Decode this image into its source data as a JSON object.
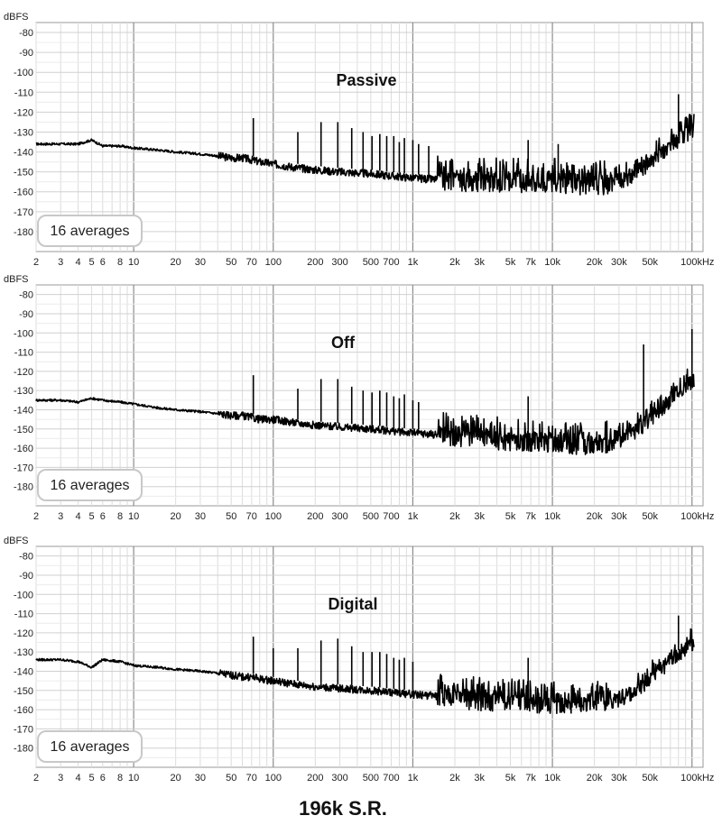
{
  "figure_caption": "196k S.R.",
  "averages_label": "16 averages",
  "chart_data": [
    {
      "type": "line",
      "title": "Passive",
      "ylabel": "dBFS",
      "xunit": "kHz",
      "xscale": "log",
      "xlim": [
        2,
        120000
      ],
      "ylim": [
        -190,
        -75
      ],
      "grid": true,
      "xticks": [
        2,
        3,
        4,
        5,
        6,
        8,
        10,
        20,
        30,
        50,
        70,
        100,
        200,
        300,
        500,
        700,
        1000,
        2000,
        3000,
        5000,
        7000,
        10000,
        20000,
        30000,
        50000,
        100000
      ],
      "xtick_labels": [
        "2",
        "3",
        "4",
        "5",
        "6",
        "8",
        "10",
        "20",
        "30",
        "50",
        "70",
        "100",
        "200",
        "300",
        "500",
        "700",
        "1k",
        "2k",
        "3k",
        "5k",
        "7k",
        "10k",
        "20k",
        "30k",
        "50k",
        "100kHz"
      ],
      "yticks": [
        -80,
        -90,
        -100,
        -110,
        -120,
        -130,
        -140,
        -150,
        -160,
        -170,
        -180
      ],
      "series": [
        {
          "x": [
            2,
            3,
            4,
            5,
            6,
            8,
            10,
            15,
            20,
            30,
            40,
            50,
            60,
            70,
            80,
            100,
            150,
            200,
            300,
            500,
            700,
            1000,
            1500,
            2000,
            3000,
            5000,
            7000,
            10000,
            15000,
            20000,
            25000,
            30000,
            40000,
            50000,
            60000,
            80000,
            100000
          ],
          "y": [
            -136,
            -136,
            -136,
            -134,
            -137,
            -137,
            -138,
            -139,
            -140,
            -141,
            -142,
            -143,
            -143,
            -144,
            -145,
            -146,
            -148,
            -149,
            -150,
            -151,
            -152,
            -153,
            -154,
            -154,
            -155,
            -155,
            -155,
            -155,
            -156,
            -156,
            -156,
            -155,
            -151,
            -146,
            -141,
            -134,
            -129
          ]
        }
      ],
      "spikes": [
        {
          "x": 72,
          "y": -123
        },
        {
          "x": 150,
          "y": -130
        },
        {
          "x": 220,
          "y": -125
        },
        {
          "x": 290,
          "y": -125
        },
        {
          "x": 365,
          "y": -128
        },
        {
          "x": 440,
          "y": -130
        },
        {
          "x": 510,
          "y": -132
        },
        {
          "x": 580,
          "y": -131
        },
        {
          "x": 650,
          "y": -132
        },
        {
          "x": 730,
          "y": -132
        },
        {
          "x": 800,
          "y": -135
        },
        {
          "x": 870,
          "y": -133
        },
        {
          "x": 1000,
          "y": -134
        },
        {
          "x": 1100,
          "y": -136
        },
        {
          "x": 1300,
          "y": -137
        },
        {
          "x": 6700,
          "y": -134
        },
        {
          "x": 11000,
          "y": -136
        },
        {
          "x": 80000,
          "y": -111
        }
      ]
    },
    {
      "type": "line",
      "title": "Off",
      "ylabel": "dBFS",
      "xunit": "kHz",
      "xscale": "log",
      "xlim": [
        2,
        120000
      ],
      "ylim": [
        -190,
        -75
      ],
      "grid": true,
      "xticks": [
        2,
        3,
        4,
        5,
        6,
        8,
        10,
        20,
        30,
        50,
        70,
        100,
        200,
        300,
        500,
        700,
        1000,
        2000,
        3000,
        5000,
        7000,
        10000,
        20000,
        30000,
        50000,
        100000
      ],
      "xtick_labels": [
        "2",
        "3",
        "4",
        "5",
        "6",
        "8",
        "10",
        "20",
        "30",
        "50",
        "70",
        "100",
        "200",
        "300",
        "500",
        "700",
        "1k",
        "2k",
        "3k",
        "5k",
        "7k",
        "10k",
        "20k",
        "30k",
        "50k",
        "100kHz"
      ],
      "yticks": [
        -80,
        -90,
        -100,
        -110,
        -120,
        -130,
        -140,
        -150,
        -160,
        -170,
        -180
      ],
      "series": [
        {
          "x": [
            2,
            3,
            4,
            5,
            6,
            8,
            10,
            15,
            20,
            30,
            40,
            50,
            60,
            70,
            80,
            100,
            150,
            200,
            300,
            500,
            700,
            1000,
            1500,
            2000,
            3000,
            5000,
            7000,
            10000,
            15000,
            20000,
            25000,
            30000,
            40000,
            50000,
            60000,
            80000,
            100000
          ],
          "y": [
            -135,
            -135,
            -136,
            -134,
            -135,
            -136,
            -137,
            -139,
            -140,
            -141,
            -142,
            -143,
            -143,
            -144,
            -145,
            -145,
            -147,
            -148,
            -149,
            -150,
            -151,
            -152,
            -153,
            -154,
            -155,
            -156,
            -157,
            -157,
            -158,
            -158,
            -158,
            -156,
            -151,
            -145,
            -140,
            -131,
            -125
          ]
        }
      ],
      "spikes": [
        {
          "x": 72,
          "y": -122
        },
        {
          "x": 150,
          "y": -129
        },
        {
          "x": 220,
          "y": -124
        },
        {
          "x": 290,
          "y": -124
        },
        {
          "x": 365,
          "y": -128
        },
        {
          "x": 440,
          "y": -130
        },
        {
          "x": 510,
          "y": -131
        },
        {
          "x": 580,
          "y": -130
        },
        {
          "x": 650,
          "y": -131
        },
        {
          "x": 730,
          "y": -133
        },
        {
          "x": 800,
          "y": -134
        },
        {
          "x": 870,
          "y": -132
        },
        {
          "x": 1000,
          "y": -135
        },
        {
          "x": 1100,
          "y": -136
        },
        {
          "x": 6700,
          "y": -133
        },
        {
          "x": 45000,
          "y": -106
        },
        {
          "x": 100000,
          "y": -98
        }
      ]
    },
    {
      "type": "line",
      "title": "Digital",
      "ylabel": "dBFS",
      "xunit": "kHz",
      "xscale": "log",
      "xlim": [
        2,
        120000
      ],
      "ylim": [
        -190,
        -75
      ],
      "grid": true,
      "xticks": [
        2,
        3,
        4,
        5,
        6,
        8,
        10,
        20,
        30,
        50,
        70,
        100,
        200,
        300,
        500,
        700,
        1000,
        2000,
        3000,
        5000,
        7000,
        10000,
        20000,
        30000,
        50000,
        100000
      ],
      "xtick_labels": [
        "2",
        "3",
        "4",
        "5",
        "6",
        "8",
        "10",
        "20",
        "30",
        "50",
        "70",
        "100",
        "200",
        "300",
        "500",
        "700",
        "1k",
        "2k",
        "3k",
        "5k",
        "7k",
        "10k",
        "20k",
        "30k",
        "50k",
        "100kHz"
      ],
      "yticks": [
        -80,
        -90,
        -100,
        -110,
        -120,
        -130,
        -140,
        -150,
        -160,
        -170,
        -180
      ],
      "series": [
        {
          "x": [
            2,
            3,
            4,
            5,
            6,
            8,
            10,
            15,
            20,
            30,
            40,
            50,
            60,
            70,
            80,
            100,
            150,
            200,
            300,
            500,
            700,
            1000,
            1500,
            2000,
            3000,
            5000,
            7000,
            10000,
            15000,
            20000,
            25000,
            30000,
            40000,
            50000,
            60000,
            80000,
            100000
          ],
          "y": [
            -134,
            -134,
            -135,
            -138,
            -134,
            -135,
            -137,
            -138,
            -139,
            -140,
            -141,
            -142,
            -143,
            -143,
            -144,
            -145,
            -147,
            -148,
            -149,
            -150,
            -151,
            -152,
            -153,
            -154,
            -155,
            -156,
            -156,
            -157,
            -157,
            -157,
            -156,
            -155,
            -150,
            -144,
            -139,
            -131,
            -126
          ]
        }
      ],
      "spikes": [
        {
          "x": 72,
          "y": -122
        },
        {
          "x": 100,
          "y": -128
        },
        {
          "x": 150,
          "y": -128
        },
        {
          "x": 220,
          "y": -124
        },
        {
          "x": 290,
          "y": -123
        },
        {
          "x": 365,
          "y": -127
        },
        {
          "x": 440,
          "y": -130
        },
        {
          "x": 510,
          "y": -130
        },
        {
          "x": 580,
          "y": -130
        },
        {
          "x": 650,
          "y": -131
        },
        {
          "x": 730,
          "y": -133
        },
        {
          "x": 800,
          "y": -134
        },
        {
          "x": 870,
          "y": -133
        },
        {
          "x": 1000,
          "y": -135
        },
        {
          "x": 6700,
          "y": -133
        },
        {
          "x": 80000,
          "y": -111
        }
      ]
    }
  ]
}
